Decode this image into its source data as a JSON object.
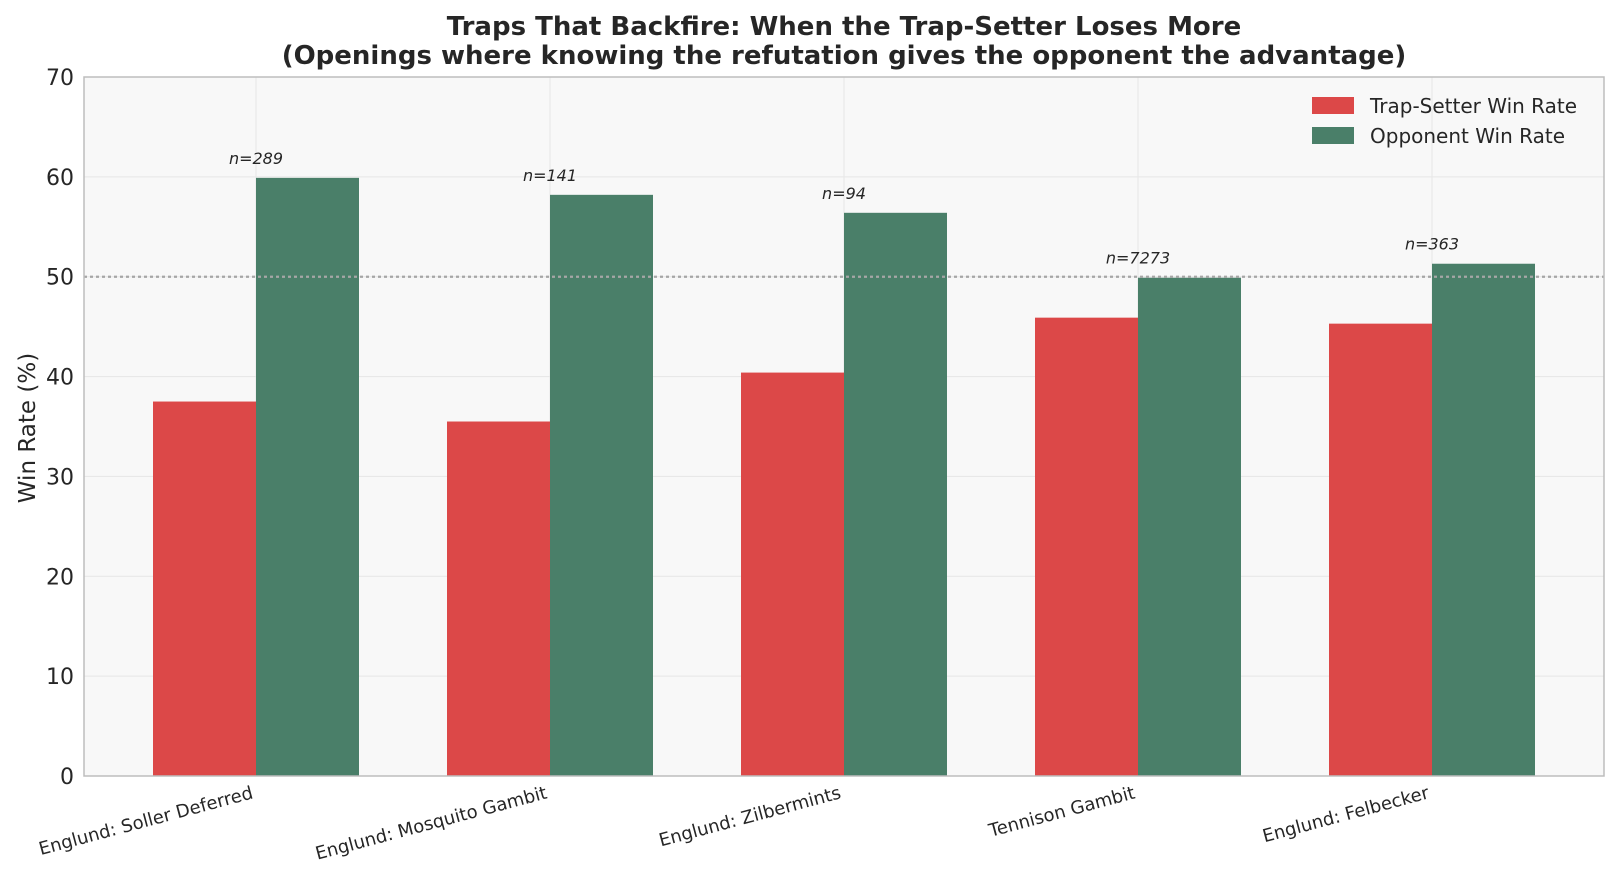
{
  "colors": {
    "trap_setter": "#DC4848",
    "opponent": "#4A7F69",
    "plot_bg": "#F8F8F8",
    "grid": "#E6E6E6",
    "axis": "#BDBDBD",
    "reference_line": "#A6A6A6",
    "text": "#262626"
  },
  "chart_data": {
    "type": "bar",
    "title": "Traps That Backfire: When the Trap-Setter Loses More",
    "subtitle": "(Openings where knowing the refutation gives the opponent the advantage)",
    "xlabel": "",
    "ylabel": "Win Rate (%)",
    "ylim": [
      0,
      70
    ],
    "yticks": [
      0,
      10,
      20,
      30,
      40,
      50,
      60,
      70
    ],
    "grid": true,
    "legend_position": "top-right",
    "reference_line": 50,
    "categories": [
      "Englund: Soller Deferred",
      "Englund: Mosquito Gambit",
      "Englund: Zilbermints",
      "Tennison Gambit",
      "Englund: Felbecker"
    ],
    "series": [
      {
        "name": "Trap-Setter Win Rate",
        "color": "#DC4848",
        "values": [
          37.5,
          35.5,
          40.4,
          45.9,
          45.3
        ]
      },
      {
        "name": "Opponent Win Rate",
        "color": "#4A7F69",
        "values": [
          59.9,
          58.2,
          56.4,
          49.9,
          51.3
        ]
      }
    ],
    "annotations": [
      "n=289",
      "n=141",
      "n=94",
      "n=7273",
      "n=363"
    ]
  }
}
